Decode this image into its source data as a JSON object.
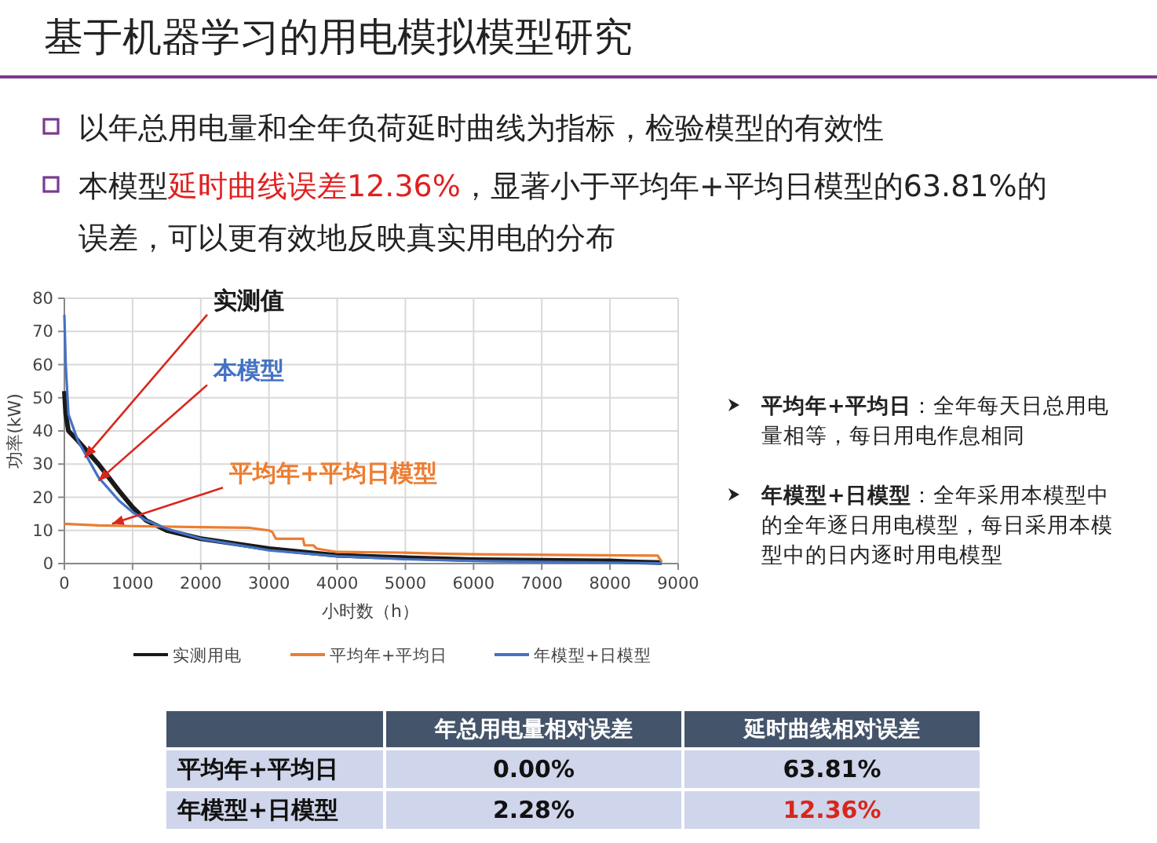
{
  "chart_data": {
    "type": "line",
    "title": "基于机器学习的用电模拟模型研究",
    "xlabel": "小时数（h）",
    "ylabel": "功率(kW)",
    "xlim": [
      0,
      9000
    ],
    "xticks": [
      0,
      1000,
      2000,
      3000,
      4000,
      5000,
      6000,
      7000,
      8000,
      9000
    ],
    "ylim": [
      0,
      80
    ],
    "yticks": [
      0,
      10,
      20,
      30,
      40,
      50,
      60,
      70,
      80
    ],
    "grid": true,
    "legend": "bottom",
    "marker": "none",
    "line_style": "solid",
    "series": [
      {
        "name": "实测用电",
        "color": "#1a1a1a",
        "x": [
          0,
          20,
          60,
          200,
          500,
          800,
          1000,
          1200,
          1500,
          2000,
          3000,
          4000,
          5000,
          6000,
          7000,
          8000,
          8400,
          8760
        ],
        "values": [
          52,
          45,
          40,
          37,
          30,
          22,
          17,
          13,
          10,
          7.5,
          4.5,
          2.5,
          1.8,
          1.2,
          1,
          0.8,
          0.5,
          0.3
        ]
      },
      {
        "name": "平均年+平均日",
        "color": "#ed7d31",
        "x": [
          0,
          500,
          1000,
          2000,
          2700,
          3000,
          3050,
          3100,
          3500,
          3520,
          3650,
          3700,
          4000,
          5000,
          5500,
          6000,
          8700,
          8760
        ],
        "values": [
          12,
          11.5,
          11.3,
          11,
          10.8,
          10,
          9.5,
          7.5,
          7.5,
          5.5,
          5.5,
          4.5,
          3.5,
          3.3,
          3,
          2.8,
          2.4,
          0.5
        ]
      },
      {
        "name": "年模型+日模型",
        "color": "#4472c4",
        "x": [
          0,
          20,
          60,
          200,
          500,
          800,
          1000,
          1200,
          1500,
          2000,
          3000,
          4000,
          5000,
          6000,
          7000,
          8000,
          8760
        ],
        "values": [
          75,
          60,
          45,
          37,
          26,
          19,
          15.5,
          13,
          10.5,
          7.5,
          4,
          2.2,
          1.3,
          0.8,
          0.5,
          0.3,
          0.1
        ]
      }
    ],
    "annotations": [
      {
        "text": "实测值",
        "x": 300,
        "y": 32
      },
      {
        "text": "本模型",
        "x": 500,
        "y": 25
      },
      {
        "text": "平均年+平均日模型",
        "x": 700,
        "y": 12
      },
      "以年总用电量和全年负荷延时曲线为指标，检验模型的有效性",
      "本模型",
      "延时曲线误差12.36%",
      "，显著小于平均年+平均日模型的63.81%的",
      "误差，可以更有效地反映真实用电的分布",
      "平均年+平均日",
      "：全年每天日总用电",
      "量相等，每日用电作息相同",
      "年模型+日模型",
      "：全年采用本模型中",
      "的全年逐日用电模型，每日采用本模",
      "型中的日内逐时用电模型",
      "年总用电量相对误差",
      "延时曲线相对误差",
      "平均年+平均日",
      "0.00%",
      "63.81%",
      "年模型+日模型",
      "2.28%",
      "12.36%"
    ]
  }
}
